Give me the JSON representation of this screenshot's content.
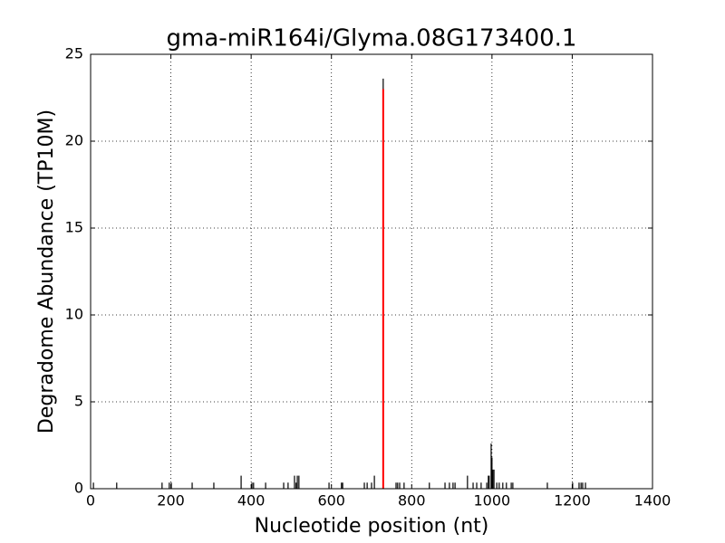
{
  "chart_data": {
    "type": "stem",
    "title": "gma-miR164i/Glyma.08G173400.1",
    "x_label": "Nucleotide position (nt)",
    "y_label": "Degradome Abundance (TP10M)",
    "xlim": [
      0,
      1400
    ],
    "ylim": [
      0,
      25
    ],
    "xticks": [
      0,
      200,
      400,
      600,
      800,
      1000,
      1200,
      1400
    ],
    "yticks": [
      0,
      5,
      10,
      15,
      20,
      25
    ],
    "grid": true,
    "series": [
      {
        "color": "#000000",
        "x": [
          7,
          65,
          178,
          196,
          201,
          253,
          307,
          375,
          402,
          406,
          436,
          481,
          492,
          508,
          512,
          515,
          519,
          594,
          625,
          628,
          682,
          689,
          700,
          707,
          729,
          761,
          765,
          770,
          781,
          844,
          883,
          894,
          903,
          908,
          939,
          953,
          962,
          973,
          987,
          991,
          993,
          998,
          1000,
          1002,
          1005,
          1012,
          1018,
          1027,
          1036,
          1048,
          1052,
          1138,
          1201,
          1217,
          1222,
          1226,
          1233
        ],
        "values": [
          0.35,
          0.35,
          0.35,
          0.35,
          0.35,
          0.35,
          0.35,
          0.75,
          0.35,
          0.35,
          0.35,
          0.35,
          0.35,
          0.75,
          0.35,
          0.75,
          0.75,
          0.35,
          0.35,
          0.35,
          0.35,
          0.35,
          0.35,
          0.75,
          23.6,
          0.35,
          0.35,
          0.35,
          0.35,
          0.35,
          0.35,
          0.35,
          0.35,
          0.35,
          0.75,
          0.35,
          0.35,
          0.35,
          0.35,
          0.75,
          0.75,
          2.6,
          1.8,
          1.1,
          1.1,
          0.35,
          0.35,
          0.35,
          0.35,
          0.35,
          0.35,
          0.35,
          0.35,
          0.35,
          0.35,
          0.35,
          0.35
        ]
      },
      {
        "color": "#ff0000",
        "x": [
          729
        ],
        "values": [
          23
        ]
      }
    ]
  }
}
